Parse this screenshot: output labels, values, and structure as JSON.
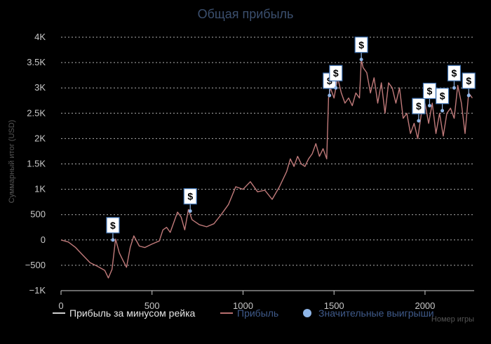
{
  "chart_data": {
    "type": "line",
    "title": "Общая прибыль",
    "xlabel": "Номер игры",
    "ylabel": "Суммарный итог (USD)",
    "xlim": [
      0,
      2270
    ],
    "ylim": [
      -1000,
      4000
    ],
    "x_ticks": [
      0,
      500,
      1000,
      1500,
      2000
    ],
    "x_tick_labels": [
      "0",
      "500",
      "1000",
      "1500",
      "2000"
    ],
    "y_ticks": [
      -1000,
      -500,
      0,
      500,
      1000,
      1500,
      2000,
      2500,
      3000,
      3500,
      4000
    ],
    "y_tick_labels": [
      "−1K",
      "−500",
      "0",
      "500",
      "1K",
      "1.5K",
      "2K",
      "2.5K",
      "3K",
      "3.5K",
      "4K"
    ],
    "grid": "horizontal-dotted",
    "legend_position": "bottom",
    "legend": [
      {
        "label": "Прибыль за минусом рейка",
        "color": "#cfcfcf",
        "kind": "line"
      },
      {
        "label": "Прибыль",
        "color": "#b86f6f",
        "kind": "line"
      },
      {
        "label": "Значительные выигрыши",
        "color": "#8fb6e8",
        "kind": "dot"
      }
    ],
    "series": [
      {
        "color": "#c07a7a",
        "x": [
          0,
          40,
          80,
          120,
          160,
          200,
          240,
          260,
          280,
          300,
          320,
          340,
          360,
          380,
          400,
          430,
          460,
          500,
          540,
          560,
          580,
          600,
          620,
          640,
          660,
          680,
          700,
          720,
          760,
          800,
          840,
          880,
          920,
          960,
          1000,
          1040,
          1080,
          1120,
          1160,
          1200,
          1240,
          1260,
          1280,
          1300,
          1320,
          1340,
          1360,
          1380,
          1400,
          1420,
          1440,
          1460,
          1470,
          1480,
          1500,
          1520,
          1540,
          1560,
          1580,
          1600,
          1620,
          1640,
          1650,
          1660,
          1680,
          1700,
          1720,
          1740,
          1760,
          1780,
          1800,
          1820,
          1840,
          1860,
          1880,
          1900,
          1920,
          1940,
          1960,
          1980,
          2000,
          2020,
          2040,
          2060,
          2080,
          2100,
          2120,
          2140,
          2160,
          2180,
          2200,
          2220,
          2240,
          2260
        ],
        "y": [
          0,
          -40,
          -150,
          -300,
          -450,
          -520,
          -600,
          -750,
          -580,
          20,
          -250,
          -400,
          -540,
          -150,
          80,
          -120,
          -150,
          -80,
          -20,
          200,
          250,
          150,
          350,
          550,
          450,
          200,
          600,
          400,
          300,
          260,
          320,
          500,
          700,
          1050,
          1000,
          1150,
          950,
          980,
          800,
          1050,
          1350,
          1600,
          1450,
          1650,
          1500,
          1450,
          1600,
          1700,
          1900,
          1650,
          1800,
          1600,
          2800,
          3000,
          2800,
          3200,
          2900,
          2700,
          2800,
          2650,
          2900,
          2800,
          3560,
          3400,
          3300,
          2900,
          3200,
          2700,
          3100,
          2500,
          3100,
          3000,
          2700,
          3000,
          2400,
          2500,
          2100,
          2300,
          2000,
          2500,
          2700,
          2300,
          2700,
          2100,
          2500,
          2050,
          2500,
          2600,
          2400,
          3050,
          2700,
          2100,
          2900,
          2800
        ]
      }
    ],
    "markers": [
      {
        "x": 285,
        "y": 0,
        "label": "$"
      },
      {
        "x": 710,
        "y": 570,
        "label": "$"
      },
      {
        "x": 1475,
        "y": 2850,
        "label": "$"
      },
      {
        "x": 1510,
        "y": 3000,
        "label": "$"
      },
      {
        "x": 1650,
        "y": 3560,
        "label": "$"
      },
      {
        "x": 1965,
        "y": 2350,
        "label": "$"
      },
      {
        "x": 2025,
        "y": 2650,
        "label": "$"
      },
      {
        "x": 2095,
        "y": 2550,
        "label": "$"
      },
      {
        "x": 2160,
        "y": 3000,
        "label": "$"
      },
      {
        "x": 2240,
        "y": 2850,
        "label": "$"
      }
    ]
  }
}
